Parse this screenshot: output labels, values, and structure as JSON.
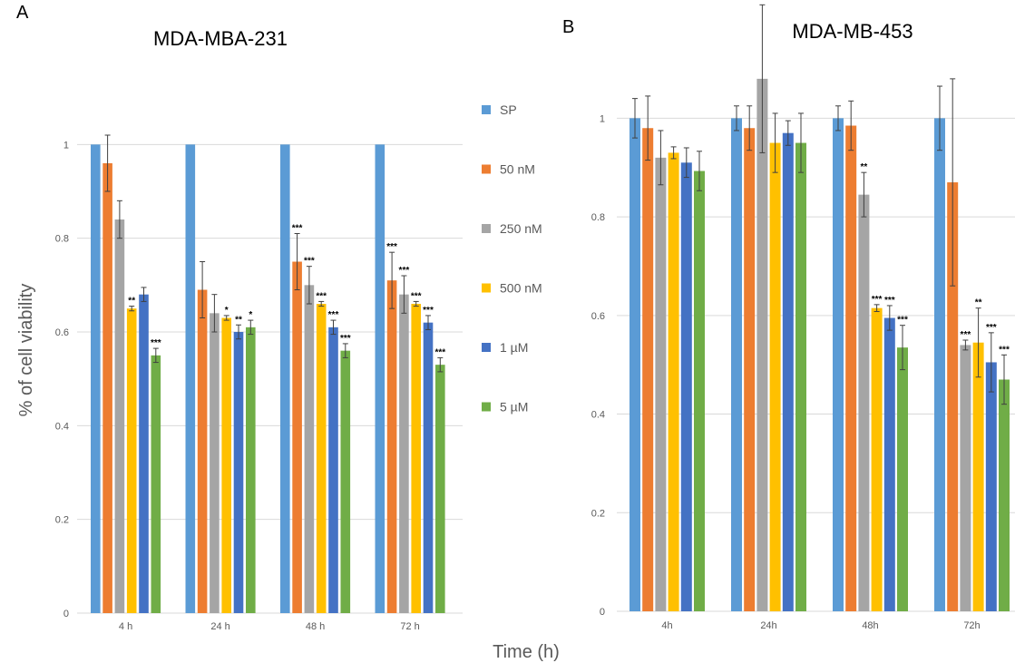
{
  "chart_data": [
    {
      "type": "bar",
      "panel_label": "A",
      "title": "MDA-MBA-231",
      "ylabel": "% of cell viability",
      "xlabel": "Time (h)",
      "categories": [
        "4 h",
        "24 h",
        "48 h",
        "72 h"
      ],
      "ylim": [
        0,
        1.2
      ],
      "yticks": [
        0,
        0.2,
        0.4,
        0.6,
        0.8,
        1
      ],
      "ytick_labels": [
        "0",
        "0.2",
        "0.4",
        "0.6",
        "0.8",
        "1"
      ],
      "grid": true,
      "legend_position": "right",
      "series": [
        {
          "name": "SP",
          "color": "#5b9bd5",
          "values": [
            1.0,
            1.0,
            1.0,
            1.0
          ],
          "errors": [
            0,
            0,
            0,
            0
          ],
          "sig": [
            "",
            "",
            "",
            ""
          ]
        },
        {
          "name": "50 nM",
          "color": "#ed7d31",
          "values": [
            0.96,
            0.69,
            0.75,
            0.71
          ],
          "errors": [
            0.06,
            0.06,
            0.06,
            0.06
          ],
          "sig": [
            "",
            "",
            "***",
            "***"
          ]
        },
        {
          "name": "250 nM",
          "color": "#a5a5a5",
          "values": [
            0.84,
            0.64,
            0.7,
            0.68
          ],
          "errors": [
            0.04,
            0.04,
            0.04,
            0.04
          ],
          "sig": [
            "",
            "",
            "***",
            "***"
          ]
        },
        {
          "name": "500 nM",
          "color": "#ffc000",
          "values": [
            0.65,
            0.63,
            0.66,
            0.66
          ],
          "errors": [
            0.005,
            0.005,
            0.005,
            0.005
          ],
          "sig": [
            "**",
            "*",
            "***",
            "***"
          ]
        },
        {
          "name": "1 µM",
          "color": "#4472c4",
          "values": [
            0.68,
            0.6,
            0.61,
            0.62
          ],
          "errors": [
            0.015,
            0.015,
            0.015,
            0.015
          ],
          "sig": [
            "",
            "**",
            "***",
            "***"
          ]
        },
        {
          "name": "5 µM",
          "color": "#70ad47",
          "values": [
            0.55,
            0.61,
            0.56,
            0.53
          ],
          "errors": [
            0.015,
            0.015,
            0.015,
            0.015
          ],
          "sig": [
            "***",
            "*",
            "***",
            "***"
          ]
        }
      ]
    },
    {
      "type": "bar",
      "panel_label": "B",
      "title": "MDA-MB-453",
      "ylabel": "",
      "xlabel": "",
      "categories": [
        "4h",
        "24h",
        "48h",
        "72h"
      ],
      "ylim": [
        0,
        1.1
      ],
      "yticks": [
        0,
        0.2,
        0.4,
        0.6,
        0.8,
        1
      ],
      "ytick_labels": [
        "0",
        "0.2",
        "0.4",
        "0.6",
        "0.8",
        "1"
      ],
      "grid": true,
      "series": [
        {
          "name": "SP",
          "color": "#5b9bd5",
          "values": [
            1.0,
            1.0,
            1.0,
            1.0
          ],
          "errors": [
            0.04,
            0.025,
            0.025,
            0.065
          ],
          "sig": [
            "",
            "",
            "",
            ""
          ]
        },
        {
          "name": "50 nM",
          "color": "#ed7d31",
          "values": [
            0.98,
            0.98,
            0.985,
            0.87
          ],
          "errors": [
            0.065,
            0.045,
            0.05,
            0.21
          ],
          "sig": [
            "",
            "",
            "",
            ""
          ]
        },
        {
          "name": "250 nM",
          "color": "#a5a5a5",
          "values": [
            0.92,
            1.08,
            0.845,
            0.54
          ],
          "errors": [
            0.055,
            0.15,
            0.045,
            0.01
          ],
          "sig": [
            "",
            "",
            "**",
            "***"
          ]
        },
        {
          "name": "500 nM",
          "color": "#ffc000",
          "values": [
            0.93,
            0.95,
            0.615,
            0.545
          ],
          "errors": [
            0.012,
            0.06,
            0.007,
            0.07
          ],
          "sig": [
            "",
            "",
            "***",
            "**"
          ]
        },
        {
          "name": "1 µM",
          "color": "#4472c4",
          "values": [
            0.91,
            0.97,
            0.595,
            0.505
          ],
          "errors": [
            0.03,
            0.025,
            0.025,
            0.06
          ],
          "sig": [
            "",
            "",
            "***",
            "***"
          ]
        },
        {
          "name": "5 µM",
          "color": "#70ad47",
          "values": [
            0.893,
            0.95,
            0.535,
            0.47
          ],
          "errors": [
            0.04,
            0.06,
            0.045,
            0.05
          ],
          "sig": [
            "",
            "",
            "***",
            "***"
          ]
        }
      ]
    }
  ]
}
